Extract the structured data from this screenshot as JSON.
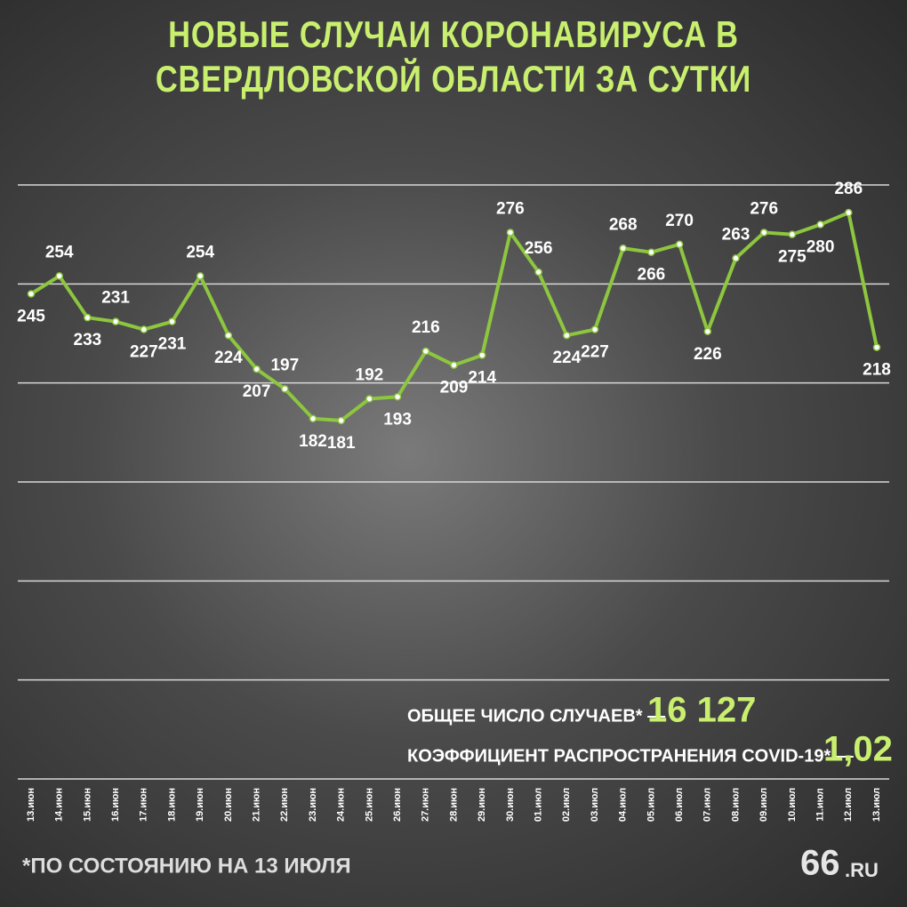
{
  "chart_data": {
    "type": "line",
    "title": "НОВЫЕ СЛУЧАИ КОРОНАВИРУСА В СВЕРДЛОВСКОЙ ОБЛАСТИ ЗА СУТКИ",
    "categories": [
      "13.июн",
      "14.июн",
      "15.июн",
      "16.июн",
      "17.июн",
      "18.июн",
      "19.июн",
      "20.июн",
      "21.июн",
      "22.июн",
      "23.июн",
      "24.июн",
      "25.июн",
      "26.июн",
      "27.июн",
      "28.июн",
      "29.июн",
      "30.июн",
      "01.июл",
      "02.июл",
      "03.июл",
      "04.июл",
      "05.июл",
      "06.июл",
      "07.июл",
      "08.июл",
      "09.июл",
      "10.июл",
      "11.июл",
      "12.июл",
      "13.июл"
    ],
    "series": [
      {
        "color": "#8dc63f",
        "values": [
          245,
          254,
          233,
          231,
          227,
          231,
          254,
          224,
          207,
          197,
          182,
          181,
          192,
          193,
          216,
          209,
          214,
          276,
          256,
          224,
          227,
          268,
          266,
          270,
          226,
          263,
          276,
          275,
          280,
          286,
          218
        ]
      }
    ],
    "ylim": [
      0,
      300
    ],
    "yticks": [
      0,
      50,
      100,
      150,
      200,
      250,
      300
    ],
    "grid": true,
    "annotations": {
      "total_label": "ОБЩЕЕ ЧИСЛО СЛУЧАЕВ* —",
      "total_value": "16 127",
      "coef_label": "КОЭФФИЦИЕНТ РАСПРОСТРАНЕНИЯ COVID-19* —",
      "coef_value": "1,02",
      "footnote": "*ПО СОСТОЯНИЮ НА 13 ИЮЛЯ",
      "logo_main": "66",
      "logo_suffix": ".RU"
    }
  }
}
